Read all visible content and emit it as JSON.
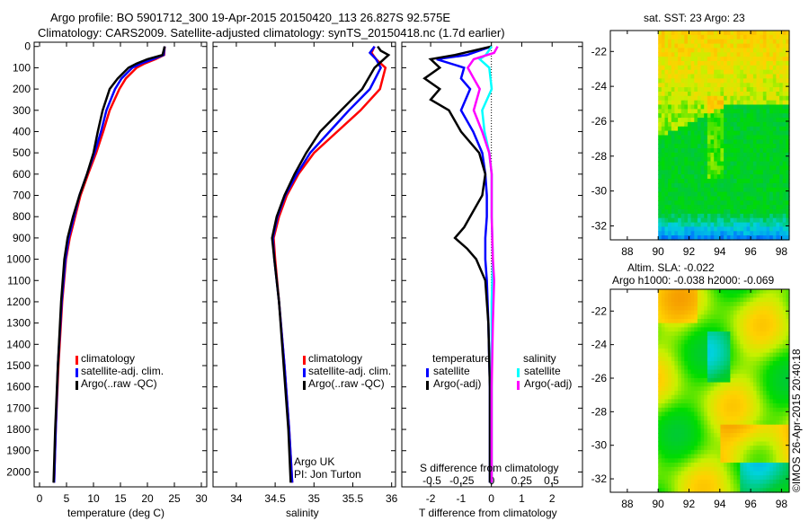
{
  "title_line1": "Argo profile: BO 5901712_300 19-Apr-2015 20150420_113 26.827S 92.575E",
  "title_line2": "Climatology: CARS2009. Satellite-adjusted climatology: synTS_20150418.nc (1.7d earlier)",
  "side_stamp": "©IMOS 26-Apr-2015 20:40:18",
  "argo_note_line1": "Argo UK",
  "argo_note_line2": "PI: Jon Turton",
  "colors": {
    "climatology": "#ff0000",
    "satellite": "#0000ff",
    "argo": "#000000",
    "sal_satellite": "#00ffff",
    "sal_argo": "#ff00ff"
  },
  "chart_data": [
    {
      "type": "line",
      "id": "temperature",
      "xlabel": "temperature (deg C)",
      "ylabel": "",
      "xlim": [
        -1,
        31
      ],
      "ylim": [
        2070,
        -20
      ],
      "xticks": [
        0,
        5,
        10,
        15,
        20,
        25,
        30
      ],
      "yticks": [
        0,
        100,
        200,
        300,
        400,
        500,
        600,
        700,
        800,
        900,
        1000,
        1100,
        1200,
        1300,
        1400,
        1500,
        1600,
        1700,
        1800,
        1900,
        2000
      ],
      "legend": [
        "climatology",
        "satellite-adj. clim.",
        "Argo(..raw -QC)"
      ],
      "legend_position": "bottom-center",
      "series": [
        {
          "name": "climatology",
          "color": "#ff0000",
          "depth": [
            0,
            40,
            60,
            80,
            100,
            150,
            200,
            300,
            400,
            500,
            600,
            700,
            800,
            900,
            1000,
            1200,
            1500,
            1800,
            2050
          ],
          "values": [
            23.2,
            23.1,
            21.5,
            19.5,
            18,
            16,
            14.8,
            13,
            11.8,
            10.5,
            9,
            7.6,
            6.6,
            5.6,
            4.9,
            4.2,
            3.5,
            3,
            2.7
          ]
        },
        {
          "name": "satellite-adj. clim.",
          "color": "#0000ff",
          "depth": [
            0,
            40,
            60,
            80,
            100,
            150,
            200,
            300,
            400,
            500,
            600,
            700,
            800,
            900,
            1000,
            1200,
            1500,
            1800,
            2050
          ],
          "values": [
            23.2,
            23,
            21,
            18.8,
            17.2,
            15.2,
            14,
            12.4,
            11.4,
            10.2,
            8.8,
            7.4,
            6.4,
            5.4,
            4.8,
            4.1,
            3.4,
            3,
            2.7
          ]
        },
        {
          "name": "Argo(..raw -QC)",
          "color": "#000000",
          "depth": [
            0,
            40,
            60,
            80,
            100,
            150,
            200,
            300,
            400,
            500,
            600,
            700,
            800,
            900,
            1000,
            1200,
            1500,
            1800,
            2050
          ],
          "values": [
            23.2,
            22.8,
            20,
            18,
            16.5,
            14.5,
            13,
            11.7,
            10.8,
            10,
            8.8,
            7.4,
            6.2,
            5.2,
            4.6,
            4,
            3.4,
            2.9,
            2.6
          ]
        }
      ]
    },
    {
      "type": "line",
      "id": "salinity",
      "xlabel": "salinity",
      "xlim": [
        33.7,
        36.05
      ],
      "ylim": [
        2070,
        -20
      ],
      "xticks": [
        34,
        34.5,
        35,
        35.5,
        36
      ],
      "legend": [
        "climatology",
        "satellite-adj. clim.",
        "Argo(..raw -QC)"
      ],
      "legend_position": "bottom-center",
      "series": [
        {
          "name": "climatology",
          "color": "#ff0000",
          "depth": [
            0,
            30,
            60,
            100,
            200,
            300,
            400,
            500,
            600,
            700,
            800,
            900,
            1000,
            1200,
            1500,
            1800,
            2050
          ],
          "values": [
            35.78,
            35.74,
            35.8,
            35.92,
            35.85,
            35.6,
            35.3,
            35.0,
            34.8,
            34.65,
            34.55,
            34.48,
            34.5,
            34.55,
            34.62,
            34.68,
            34.72
          ]
        },
        {
          "name": "satellite-adj. clim.",
          "color": "#0000ff",
          "depth": [
            0,
            30,
            60,
            100,
            200,
            300,
            400,
            500,
            600,
            700,
            800,
            900,
            1000,
            1200,
            1500,
            1800,
            2050
          ],
          "values": [
            35.78,
            35.72,
            35.8,
            35.86,
            35.72,
            35.45,
            35.2,
            34.95,
            34.78,
            34.63,
            34.53,
            34.47,
            34.49,
            34.55,
            34.62,
            34.68,
            34.72
          ]
        },
        {
          "name": "Argo(..raw -QC)",
          "color": "#000000",
          "depth": [
            0,
            20,
            40,
            60,
            100,
            200,
            300,
            400,
            500,
            600,
            700,
            800,
            900,
            1000,
            1200,
            1500,
            1800,
            2050
          ],
          "values": [
            35.82,
            35.86,
            35.96,
            35.9,
            35.78,
            35.62,
            35.35,
            35.08,
            34.9,
            34.75,
            34.62,
            34.52,
            34.46,
            34.49,
            34.55,
            34.61,
            34.67,
            34.7
          ]
        }
      ]
    },
    {
      "type": "line",
      "id": "difference",
      "xlabel": "T difference from climatology",
      "xlabel_top": "S difference from climatology",
      "xlim": [
        -2.95,
        3.0
      ],
      "xticks": [
        -2,
        -1,
        0,
        1,
        2
      ],
      "s_xticks": [
        -0.5,
        -0.25,
        0,
        0.25,
        0.5
      ],
      "s_xtick_labels": [
        "-0.5",
        "-0.25",
        "0",
        "0.25",
        "0.5"
      ],
      "ylim": [
        2070,
        -20
      ],
      "legend_temperature_title": "temperature",
      "legend_salinity_title": "salinity",
      "legend": [
        "satellite",
        "Argo(-adj)",
        "satellite",
        "Argo(-adj)"
      ],
      "legend_position": "bottom-center",
      "series": [
        {
          "name": "T satellite",
          "color": "#0000ff",
          "depth": [
            0,
            40,
            60,
            100,
            150,
            200,
            300,
            400,
            500,
            600,
            700,
            800,
            900,
            1000,
            1100,
            1300,
            1600,
            2050
          ],
          "values": [
            0,
            -0.8,
            -1.8,
            -0.9,
            -1.0,
            -0.7,
            -1.0,
            -0.6,
            -0.3,
            -0.2,
            -0.15,
            -0.15,
            -0.2,
            -0.2,
            -0.15,
            -0.1,
            -0.05,
            -0.05
          ]
        },
        {
          "name": "T Argo(-adj)",
          "color": "#000000",
          "depth": [
            0,
            40,
            60,
            100,
            150,
            200,
            250,
            300,
            400,
            500,
            600,
            700,
            800,
            850,
            900,
            950,
            1000,
            1100,
            1300,
            1600,
            2050
          ],
          "values": [
            0,
            -1.2,
            -2.0,
            -1.7,
            -2.2,
            -1.7,
            -2.0,
            -1.4,
            -1.0,
            -0.4,
            -0.2,
            -0.3,
            -0.7,
            -0.9,
            -1.2,
            -0.8,
            -0.5,
            -0.2,
            -0.1,
            -0.05,
            -0.05
          ]
        },
        {
          "name": "S satellite",
          "color": "#00ffff",
          "depth": [
            0,
            40,
            60,
            100,
            200,
            300,
            400,
            500,
            600,
            800,
            1000,
            1200,
            1600,
            2050
          ],
          "values": [
            0,
            -0.05,
            -0.1,
            -0.02,
            0,
            -0.08,
            -0.06,
            -0.02,
            0,
            0,
            0.01,
            0,
            0,
            0
          ]
        },
        {
          "name": "S Argo(-adj)",
          "color": "#ff00ff",
          "depth": [
            0,
            30,
            60,
            100,
            150,
            200,
            300,
            400,
            500,
            600,
            800,
            1000,
            1100,
            1300,
            1600,
            2050
          ],
          "values": [
            0.05,
            0.02,
            -0.15,
            -0.2,
            -0.15,
            -0.1,
            -0.15,
            -0.08,
            -0.02,
            0,
            0,
            0.01,
            0.02,
            0.01,
            0,
            0
          ]
        }
      ]
    },
    {
      "type": "heatmap",
      "id": "sst_map",
      "title": "sat. SST: 23 Argo: 23",
      "xlim": [
        86.9,
        98.5
      ],
      "ylim": [
        -32.8,
        -20.8
      ],
      "xticks": [
        88,
        90,
        92,
        94,
        96,
        98
      ],
      "yticks": [
        -22,
        -24,
        -26,
        -28,
        -30,
        -32
      ],
      "data_lon_min": 90
    },
    {
      "type": "heatmap",
      "id": "sla_map",
      "title_line1": "Altim. SLA: -0.022",
      "title_line2": "Argo h1000: -0.038 h2000: -0.069",
      "xlim": [
        86.9,
        98.5
      ],
      "ylim": [
        -32.8,
        -20.7
      ],
      "xticks": [
        88,
        90,
        92,
        94,
        96,
        98
      ],
      "yticks": [
        -22,
        -24,
        -26,
        -28,
        -30,
        -32
      ],
      "data_lon_min": 90
    }
  ]
}
